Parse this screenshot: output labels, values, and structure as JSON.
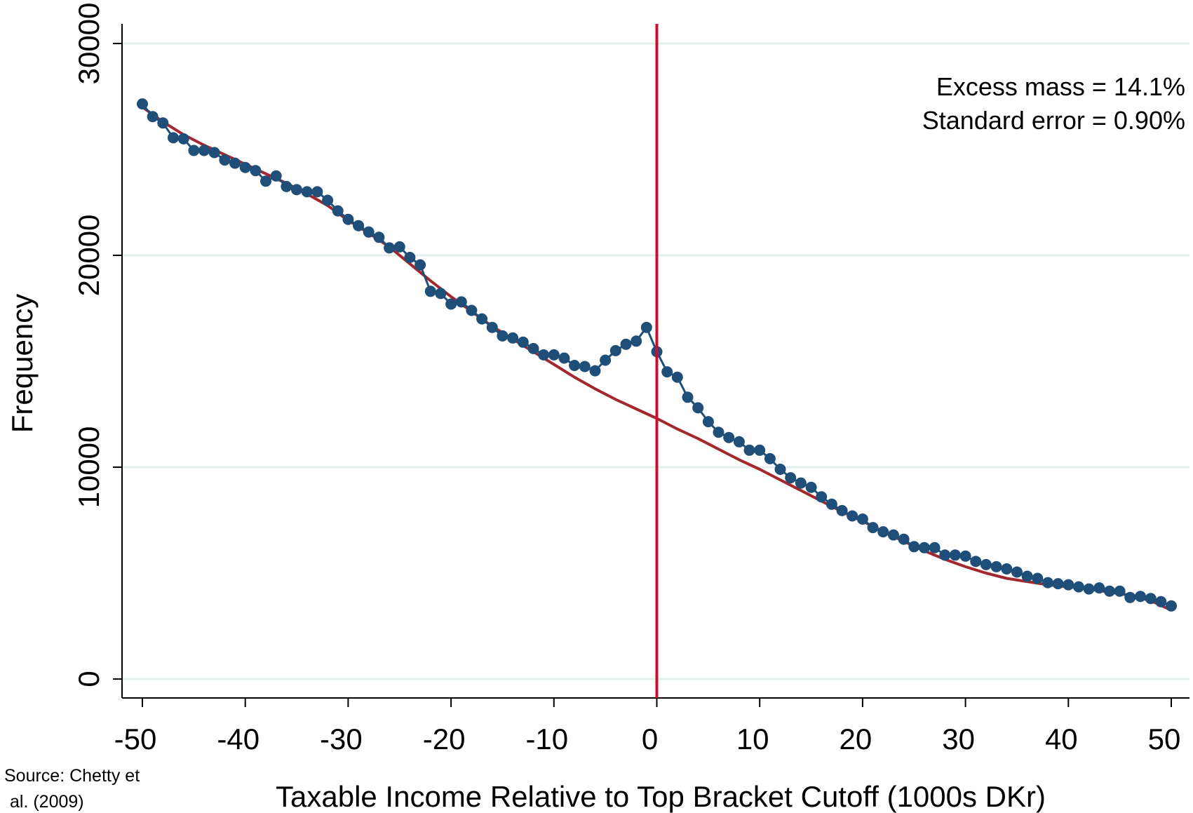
{
  "chart_data": {
    "type": "scatter",
    "xlabel": "Taxable Income Relative to Top Bracket Cutoff (1000s DKr)",
    "ylabel": "Frequency",
    "xlim": [
      -50,
      50
    ],
    "ylim": [
      0,
      30000
    ],
    "x_ticks": [
      -50,
      -40,
      -30,
      -20,
      -10,
      0,
      10,
      20,
      30,
      40,
      50
    ],
    "y_ticks": [
      0,
      10000,
      20000,
      30000
    ],
    "x_tick_labels": [
      "-50",
      "-40",
      "-30",
      "-20",
      "-10",
      "0",
      "10",
      "20",
      "30",
      "40",
      "50"
    ],
    "y_tick_labels": [
      "0",
      "10000",
      "20000",
      "30000"
    ],
    "grid": "horizontal",
    "cutoff_line_x": 0,
    "annotations": [
      "Excess mass = 14.1%",
      "Standard error = 0.90%"
    ],
    "source_note": [
      "Source: Chetty et",
      "al. (2009)"
    ],
    "colors": {
      "observed": "#1f4e79",
      "counterfactual": "#a3282d",
      "cutoff": "#c8102e",
      "grid": "#e3eeee"
    },
    "series": [
      {
        "kind": "observed",
        "x": [
          -50,
          -49,
          -48,
          -47,
          -46,
          -45,
          -44,
          -43,
          -42,
          -41,
          -40,
          -39,
          -38,
          -37,
          -36,
          -35,
          -34,
          -33,
          -32,
          -31,
          -30,
          -29,
          -28,
          -27,
          -26,
          -25,
          -24,
          -23,
          -22,
          -21,
          -20,
          -19,
          -18,
          -17,
          -16,
          -15,
          -14,
          -13,
          -12,
          -11,
          -10,
          -9,
          -8,
          -7,
          -6,
          -5,
          -4,
          -3,
          -2,
          -1,
          0,
          1,
          2,
          3,
          4,
          5,
          6,
          7,
          8,
          9,
          10,
          11,
          12,
          13,
          14,
          15,
          16,
          17,
          18,
          19,
          20,
          21,
          22,
          23,
          24,
          25,
          26,
          27,
          28,
          29,
          30,
          31,
          32,
          33,
          34,
          35,
          36,
          37,
          38,
          39,
          40,
          41,
          42,
          43,
          44,
          45,
          46,
          47,
          48,
          49,
          50
        ],
        "y": [
          27150,
          26550,
          26250,
          25550,
          25500,
          24950,
          24950,
          24850,
          24500,
          24350,
          24150,
          24000,
          23500,
          23750,
          23250,
          23100,
          23000,
          23000,
          22600,
          22100,
          21700,
          21400,
          21100,
          20850,
          20350,
          20400,
          19900,
          19550,
          18300,
          18200,
          17700,
          17800,
          17400,
          17000,
          16600,
          16200,
          16100,
          15900,
          15600,
          15300,
          15300,
          15150,
          14800,
          14750,
          14550,
          15050,
          15500,
          15800,
          15950,
          16600,
          15450,
          14500,
          14250,
          13300,
          12800,
          12150,
          11650,
          11400,
          11200,
          10800,
          10800,
          10400,
          9900,
          9500,
          9250,
          9050,
          8600,
          8250,
          7950,
          7700,
          7550,
          7150,
          6950,
          6800,
          6600,
          6250,
          6200,
          6200,
          5850,
          5850,
          5800,
          5550,
          5400,
          5300,
          5200,
          5050,
          4850,
          4750,
          4550,
          4500,
          4450,
          4350,
          4250,
          4300,
          4150,
          4150,
          3850,
          3900,
          3800,
          3650,
          3450
        ]
      },
      {
        "kind": "counterfactual",
        "x": [
          -50,
          -48,
          -46,
          -44,
          -42,
          -40,
          -38,
          -36,
          -34,
          -32,
          -30,
          -28,
          -26,
          -24,
          -22,
          -20,
          -18,
          -16,
          -14,
          -12,
          -10,
          -8,
          -6,
          -4,
          -2,
          0,
          2,
          4,
          6,
          8,
          10,
          12,
          14,
          16,
          18,
          20,
          22,
          24,
          26,
          28,
          30,
          32,
          34,
          36,
          38,
          40,
          42,
          44,
          46,
          48,
          50
        ],
        "y": [
          27000,
          26300,
          25700,
          25200,
          24750,
          24300,
          23850,
          23400,
          22900,
          22350,
          21650,
          21050,
          20400,
          19600,
          18800,
          18050,
          17350,
          16650,
          16050,
          15450,
          14850,
          14250,
          13700,
          13200,
          12750,
          12300,
          11800,
          11350,
          10850,
          10350,
          9900,
          9400,
          8900,
          8400,
          7900,
          7450,
          6950,
          6500,
          6050,
          5650,
          5300,
          5000,
          4750,
          4600,
          4450,
          4350,
          4250,
          4100,
          3950,
          3700,
          3250
        ]
      }
    ]
  }
}
